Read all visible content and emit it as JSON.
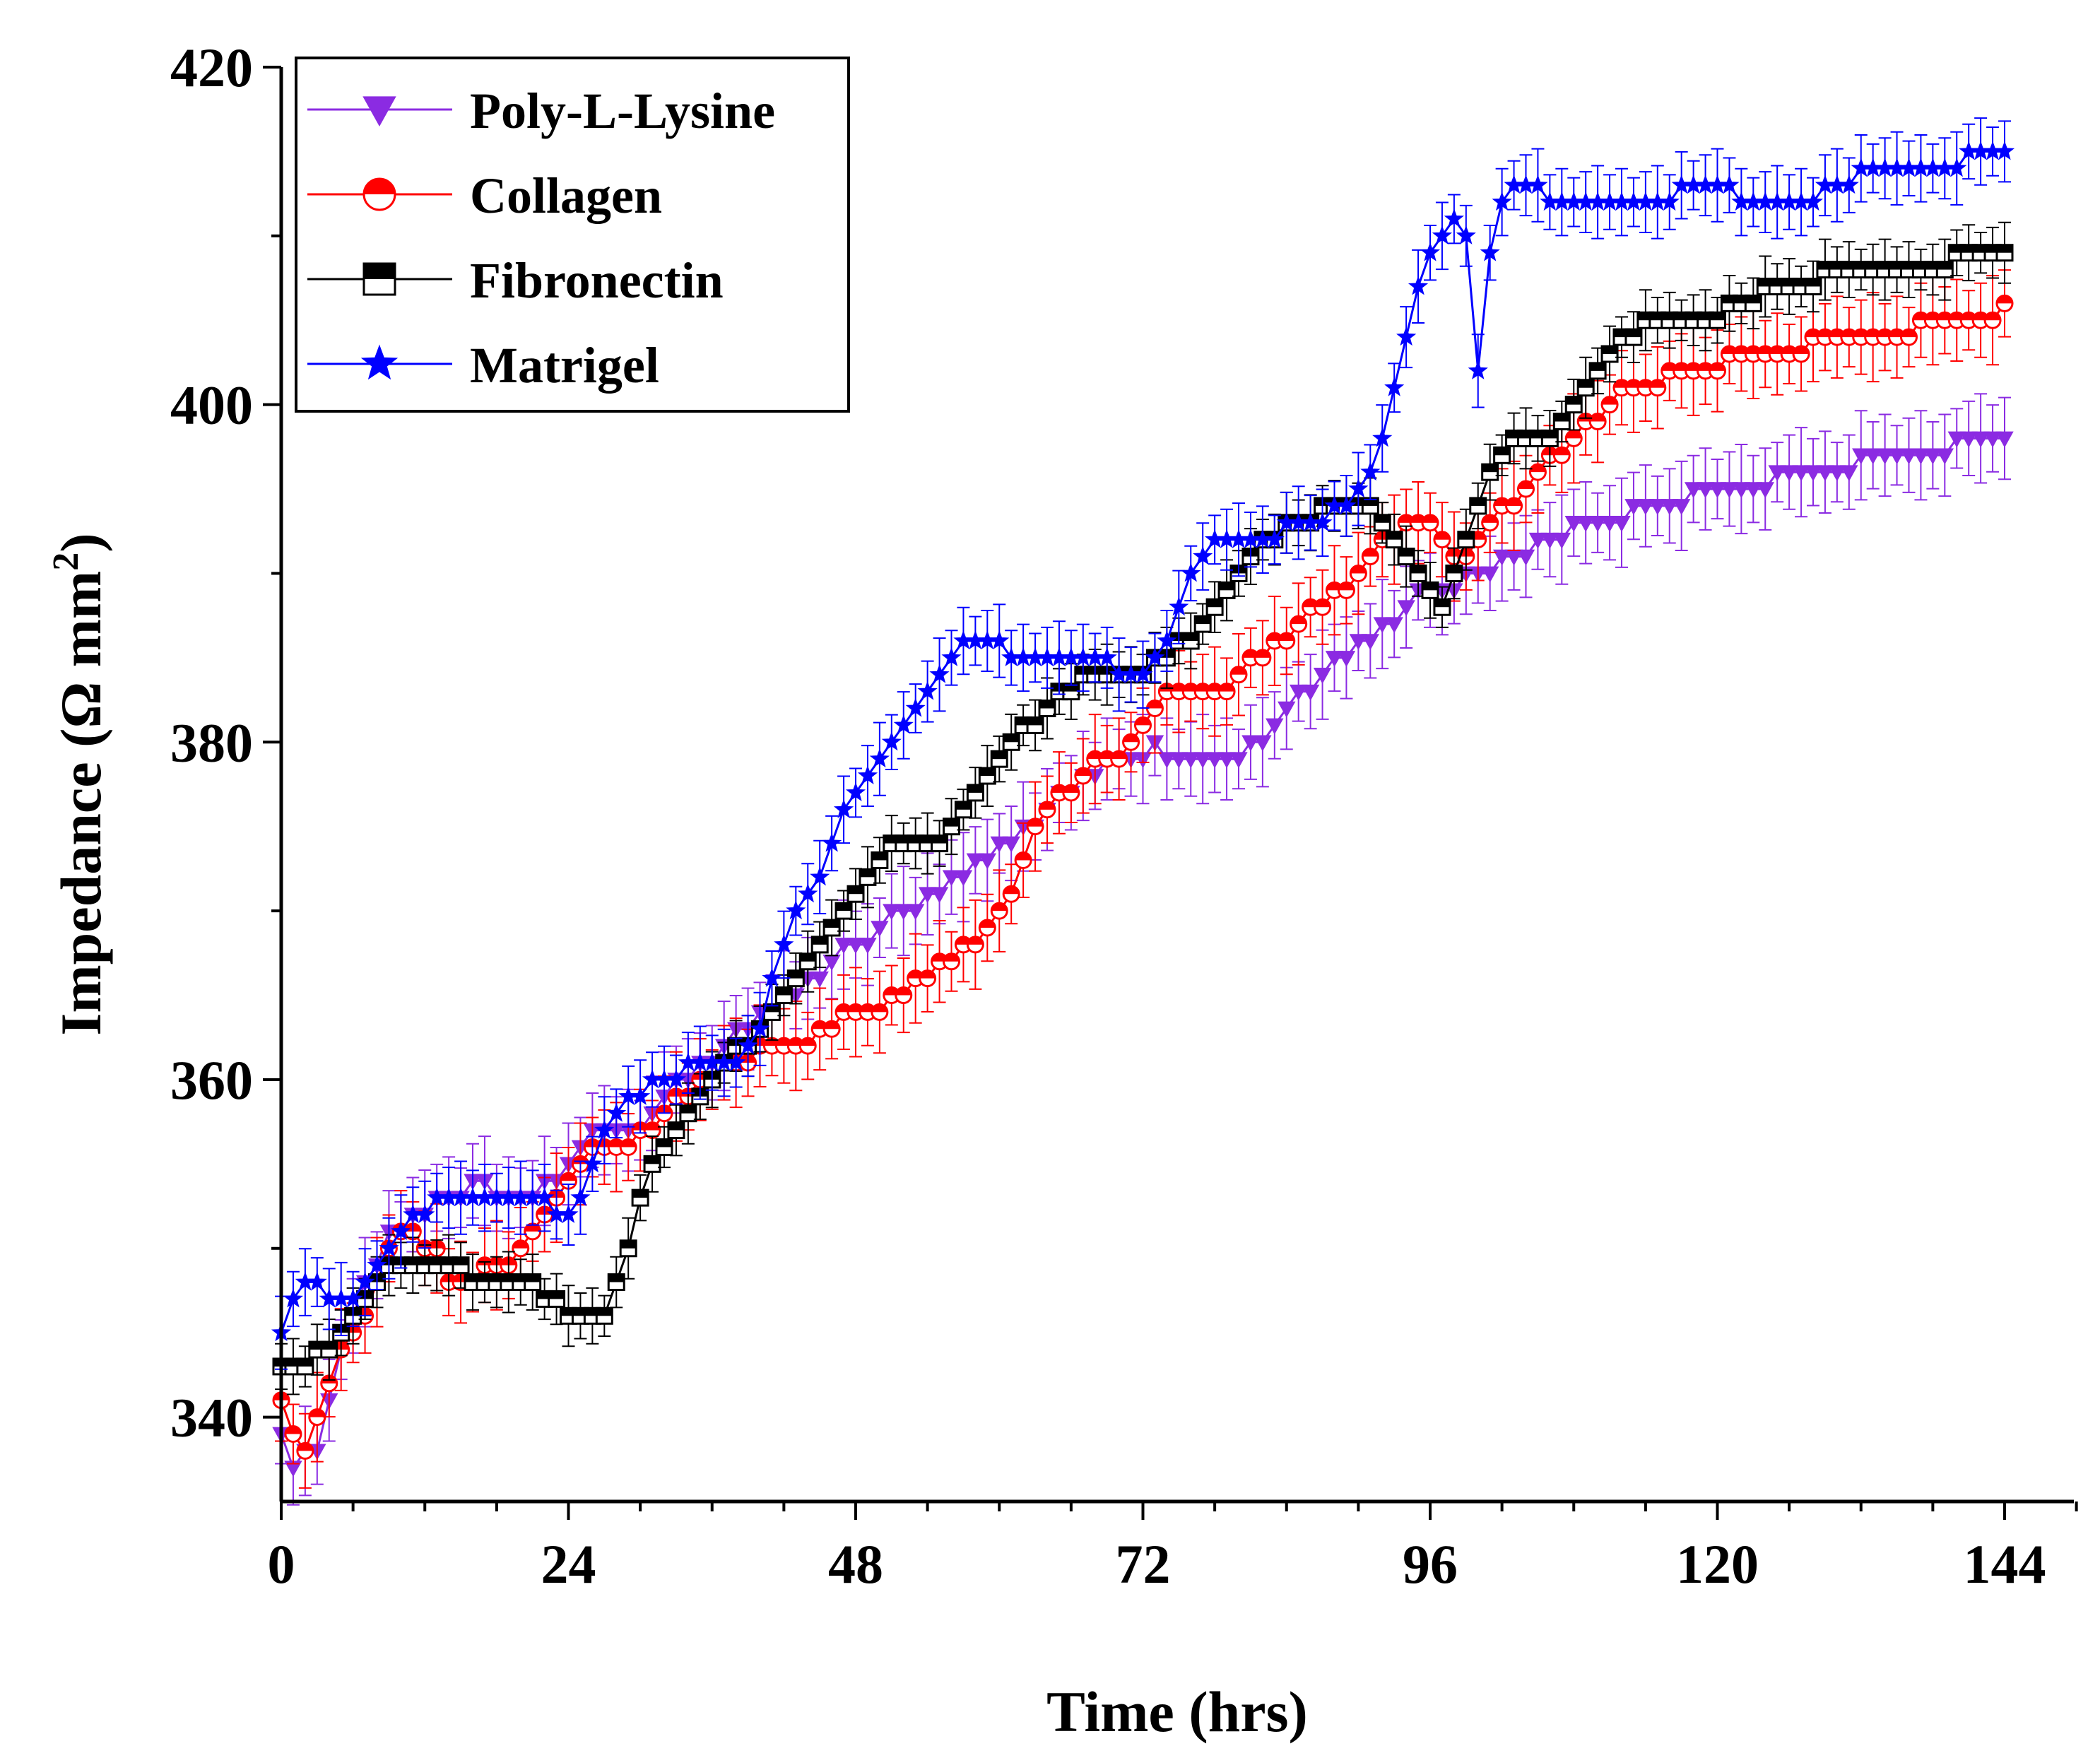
{
  "chart_data": {
    "type": "line",
    "title": "",
    "xlabel": "Time (hrs)",
    "ylabel_main": "Impedance (Ω mm",
    "ylabel_sup": "2",
    "ylabel_close": ")",
    "xlim": [
      0,
      150
    ],
    "ylim": [
      335,
      420
    ],
    "xticks": [
      0,
      24,
      48,
      72,
      96,
      120,
      144
    ],
    "yticks": [
      340,
      360,
      380,
      400,
      420
    ],
    "x": [
      0,
      1,
      2,
      3,
      4,
      5,
      6,
      7,
      8,
      9,
      10,
      11,
      12,
      13,
      14,
      15,
      16,
      17,
      18,
      19,
      20,
      21,
      22,
      23,
      24,
      25,
      26,
      27,
      28,
      29,
      30,
      31,
      32,
      33,
      34,
      35,
      36,
      37,
      38,
      39,
      40,
      41,
      42,
      43,
      44,
      45,
      46,
      47,
      48,
      49,
      50,
      51,
      52,
      53,
      54,
      55,
      56,
      57,
      58,
      59,
      60,
      61,
      62,
      63,
      64,
      65,
      66,
      67,
      68,
      69,
      70,
      71,
      72,
      73,
      74,
      75,
      76,
      77,
      78,
      79,
      80,
      81,
      82,
      83,
      84,
      85,
      86,
      87,
      88,
      89,
      90,
      91,
      92,
      93,
      94,
      95,
      96,
      97,
      98,
      99,
      100,
      101,
      102,
      103,
      104,
      105,
      106,
      107,
      108,
      109,
      110,
      111,
      112,
      113,
      114,
      115,
      116,
      117,
      118,
      119,
      120,
      121,
      122,
      123,
      124,
      125,
      126,
      127,
      128,
      129,
      130,
      131,
      132,
      133,
      134,
      135,
      136,
      137,
      138,
      139,
      140,
      141,
      142,
      143,
      144
    ],
    "series": [
      {
        "name": "Poly-L-Lysine",
        "color": "#8b2be2",
        "marker": "triangle-down",
        "values": [
          339,
          337,
          338,
          338,
          341,
          344,
          346,
          348,
          349,
          351,
          351,
          352,
          352,
          353,
          353,
          353,
          354,
          354,
          353,
          353,
          353,
          353,
          354,
          354,
          355,
          356,
          357,
          357,
          357,
          357,
          357,
          358,
          359,
          360,
          360,
          361,
          361,
          362,
          363,
          363,
          364,
          364,
          365,
          365,
          366,
          366,
          367,
          368,
          368,
          368,
          369,
          370,
          370,
          370,
          371,
          371,
          372,
          372,
          373,
          373,
          374,
          374,
          375,
          375,
          376,
          377,
          377,
          378,
          378,
          379,
          379,
          379,
          379,
          380,
          379,
          379,
          379,
          379,
          379,
          379,
          379,
          380,
          380,
          381,
          382,
          383,
          383,
          384,
          385,
          385,
          386,
          386,
          387,
          387,
          388,
          389,
          389,
          389,
          389,
          390,
          390,
          390,
          391,
          391,
          391,
          392,
          392,
          392,
          393,
          393,
          393,
          393,
          393,
          394,
          394,
          394,
          394,
          394,
          395,
          395,
          395,
          395,
          395,
          395,
          395,
          396,
          396,
          396,
          396,
          396,
          396,
          396,
          397,
          397,
          397,
          397,
          397,
          397,
          397,
          397,
          398,
          398,
          398,
          398,
          398
        ],
        "err": 2.2
      },
      {
        "name": "Collagen",
        "color": "#ff0000",
        "marker": "circle-half",
        "values": [
          341,
          339,
          338,
          340,
          342,
          344,
          345,
          346,
          348,
          350,
          351,
          351,
          350,
          350,
          348,
          348,
          348,
          349,
          349,
          349,
          350,
          351,
          352,
          353,
          354,
          355,
          356,
          356,
          356,
          356,
          357,
          357,
          358,
          359,
          359,
          360,
          360,
          361,
          361,
          361,
          362,
          362,
          362,
          362,
          362,
          363,
          363,
          364,
          364,
          364,
          364,
          365,
          365,
          366,
          366,
          367,
          367,
          368,
          368,
          369,
          370,
          371,
          373,
          375,
          376,
          377,
          377,
          378,
          379,
          379,
          379,
          380,
          381,
          382,
          383,
          383,
          383,
          383,
          383,
          383,
          384,
          385,
          385,
          386,
          386,
          387,
          388,
          388,
          389,
          389,
          390,
          391,
          392,
          392,
          393,
          393,
          393,
          392,
          391,
          391,
          392,
          393,
          394,
          394,
          395,
          396,
          397,
          397,
          398,
          399,
          399,
          400,
          401,
          401,
          401,
          401,
          402,
          402,
          402,
          402,
          402,
          403,
          403,
          403,
          403,
          403,
          403,
          403,
          404,
          404,
          404,
          404,
          404,
          404,
          404,
          404,
          404,
          405,
          405,
          405,
          405,
          405,
          405,
          405,
          406
        ],
        "err": 2.2
      },
      {
        "name": "Fibronectin",
        "color": "#000000",
        "marker": "square-half",
        "values": [
          343,
          343,
          343,
          344,
          344,
          345,
          346,
          347,
          348,
          349,
          349,
          349,
          349,
          349,
          349,
          349,
          348,
          348,
          348,
          348,
          348,
          348,
          347,
          347,
          346,
          346,
          346,
          346,
          348,
          350,
          353,
          355,
          356,
          357,
          358,
          359,
          360,
          361,
          362,
          362,
          363,
          364,
          365,
          366,
          367,
          368,
          369,
          370,
          371,
          372,
          373,
          374,
          374,
          374,
          374,
          374,
          375,
          376,
          377,
          378,
          379,
          380,
          381,
          381,
          382,
          383,
          383,
          384,
          384,
          384,
          384,
          384,
          384,
          385,
          385,
          386,
          386,
          387,
          388,
          389,
          390,
          391,
          392,
          392,
          393,
          393,
          393,
          394,
          394,
          394,
          394,
          394,
          393,
          392,
          391,
          390,
          389,
          388,
          390,
          392,
          394,
          396,
          397,
          398,
          398,
          398,
          398,
          399,
          400,
          401,
          402,
          403,
          404,
          404,
          405,
          405,
          405,
          405,
          405,
          405,
          405,
          406,
          406,
          406,
          407,
          407,
          407,
          407,
          407,
          408,
          408,
          408,
          408,
          408,
          408,
          408,
          408,
          408,
          408,
          408,
          409,
          409,
          409,
          409,
          409
        ],
        "err": 1.5
      },
      {
        "name": "Matrigel",
        "color": "#0000ff",
        "marker": "star",
        "values": [
          345,
          347,
          348,
          348,
          347,
          347,
          347,
          348,
          349,
          350,
          351,
          352,
          352,
          353,
          353,
          353,
          353,
          353,
          353,
          353,
          353,
          353,
          353,
          352,
          352,
          353,
          355,
          357,
          358,
          359,
          359,
          360,
          360,
          360,
          361,
          361,
          361,
          361,
          361,
          362,
          363,
          366,
          368,
          370,
          371,
          372,
          374,
          376,
          377,
          378,
          379,
          380,
          381,
          382,
          383,
          384,
          385,
          386,
          386,
          386,
          386,
          385,
          385,
          385,
          385,
          385,
          385,
          385,
          385,
          385,
          384,
          384,
          384,
          385,
          386,
          388,
          390,
          391,
          392,
          392,
          392,
          392,
          392,
          392,
          393,
          393,
          393,
          393,
          394,
          394,
          395,
          396,
          398,
          401,
          404,
          407,
          409,
          410,
          411,
          410,
          402,
          409,
          412,
          413,
          413,
          413,
          412,
          412,
          412,
          412,
          412,
          412,
          412,
          412,
          412,
          412,
          412,
          413,
          413,
          413,
          413,
          413,
          412,
          412,
          412,
          412,
          412,
          412,
          412,
          413,
          413,
          413,
          414,
          414,
          414,
          414,
          414,
          414,
          414,
          414,
          414,
          415,
          415,
          415,
          415
        ],
        "err": 1.8
      }
    ],
    "legend": [
      "Poly-L-Lysine",
      "Collagen",
      "Fibronectin",
      "Matrigel"
    ],
    "legend_position": "top-left"
  }
}
